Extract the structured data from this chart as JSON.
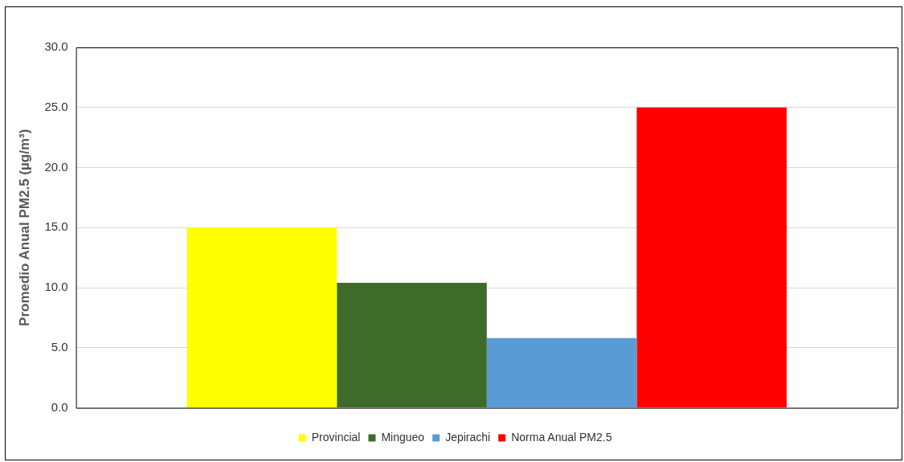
{
  "chart_data": {
    "type": "bar",
    "ylabel": "Promedio Anual PM2.5 (µg/m³)",
    "categories": [
      null
    ],
    "series": [
      {
        "name": "Provincial",
        "color": "#ffff00",
        "values": [
          15.0
        ]
      },
      {
        "name": "Mingueo",
        "color": "#3f6b2a",
        "values": [
          10.4
        ]
      },
      {
        "name": "Jepirachi",
        "color": "#5b9bd5",
        "values": [
          5.8
        ]
      },
      {
        "name": "Norma Anual PM2.5",
        "color": "#ff0000",
        "values": [
          25.0
        ]
      }
    ],
    "ylim": [
      0,
      30
    ],
    "yticks": [
      {
        "value": 0,
        "label": "0.0"
      },
      {
        "value": 5,
        "label": "5.0"
      },
      {
        "value": 10,
        "label": "10.0"
      },
      {
        "value": 15,
        "label": "15.0"
      },
      {
        "value": 20,
        "label": "20.0"
      },
      {
        "value": 25,
        "label": "25.0"
      },
      {
        "value": 30,
        "label": "30.0"
      }
    ],
    "grid": "y",
    "legend": "bottom"
  }
}
